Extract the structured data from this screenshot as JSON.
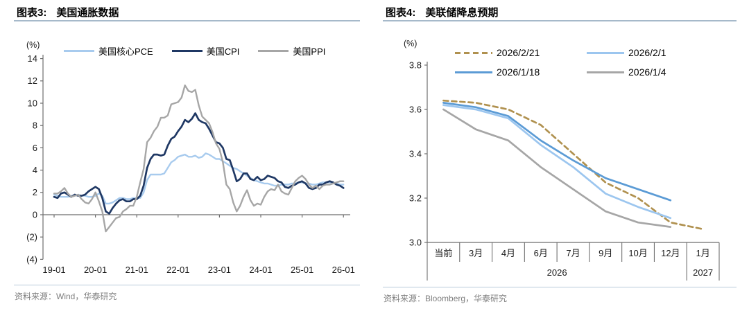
{
  "figures": [
    {
      "caption_prefix": "图表3:",
      "caption": "美国通胀数据",
      "source": "资料来源：Wind，华泰研究"
    },
    {
      "caption_prefix": "图表4:",
      "caption": "美联储降息预期",
      "source": "资料来源：Bloomberg，华泰研究"
    }
  ],
  "chart_data": [
    {
      "type": "line",
      "title": "美国通胀数据",
      "unit_label": "(%)",
      "ylim": [
        -4,
        14
      ],
      "grid": false,
      "legend_position": "top",
      "yticks": [
        {
          "v": 14,
          "t": "14"
        },
        {
          "v": 12,
          "t": "12"
        },
        {
          "v": 10,
          "t": "10"
        },
        {
          "v": 8,
          "t": "8"
        },
        {
          "v": 6,
          "t": "6"
        },
        {
          "v": 4,
          "t": "4"
        },
        {
          "v": 2,
          "t": "2"
        },
        {
          "v": 0,
          "t": "0"
        },
        {
          "v": -2,
          "t": "(2)"
        },
        {
          "v": -4,
          "t": "(4)"
        }
      ],
      "x_tick_labels": [
        "19-01",
        "20-01",
        "21-01",
        "22-01",
        "23-01",
        "24-01",
        "25-01",
        "26-01"
      ],
      "months_per_tick": 12,
      "x_start": "2019-01",
      "series": [
        {
          "name": "美国核心PCE",
          "color": "#a8cbee",
          "width": 2.4,
          "values": [
            1.8,
            1.7,
            1.6,
            1.6,
            1.6,
            1.7,
            1.7,
            1.8,
            1.7,
            1.7,
            1.6,
            1.6,
            1.7,
            1.9,
            1.7,
            1.0,
            1.0,
            1.1,
            1.3,
            1.5,
            1.5,
            1.4,
            1.4,
            1.5,
            1.5,
            1.5,
            2.0,
            3.1,
            3.6,
            3.6,
            3.6,
            3.6,
            3.7,
            4.2,
            4.7,
            4.9,
            5.2,
            5.3,
            5.4,
            5.2,
            5.2,
            5.3,
            5.1,
            5.2,
            5.5,
            5.4,
            5.2,
            5.0,
            5.0,
            4.8,
            4.6,
            4.4,
            4.2,
            4.1,
            3.9,
            3.7,
            3.5,
            3.3,
            3.1,
            3.0,
            2.9,
            2.8,
            2.8,
            2.7,
            2.6,
            2.6,
            2.7,
            2.7,
            2.7,
            2.8,
            2.8,
            2.9,
            2.9,
            2.8,
            2.8,
            2.7,
            2.7,
            2.8,
            2.9,
            2.9,
            2.9,
            2.8,
            2.8,
            2.7,
            2.7
          ]
        },
        {
          "name": "美国CPI",
          "color": "#1f3864",
          "width": 2.7,
          "values": [
            1.6,
            1.5,
            1.9,
            2.0,
            1.8,
            1.6,
            1.8,
            1.7,
            1.7,
            1.8,
            2.1,
            2.3,
            2.5,
            2.3,
            1.5,
            0.3,
            0.1,
            0.6,
            1.0,
            1.3,
            1.4,
            1.2,
            1.2,
            1.4,
            1.4,
            1.7,
            2.6,
            4.2,
            5.0,
            5.4,
            5.4,
            5.3,
            5.4,
            6.2,
            6.8,
            7.0,
            7.5,
            7.9,
            8.5,
            8.3,
            8.6,
            9.1,
            8.5,
            8.3,
            8.2,
            7.7,
            7.1,
            6.5,
            6.4,
            6.0,
            5.0,
            4.9,
            4.0,
            3.0,
            3.2,
            3.7,
            3.7,
            3.2,
            3.1,
            3.4,
            3.1,
            3.2,
            3.5,
            3.4,
            3.3,
            3.0,
            2.9,
            2.5,
            2.4,
            2.6,
            2.7,
            2.9,
            3.0,
            2.8,
            2.4,
            2.3,
            2.4,
            2.7,
            2.7,
            2.9,
            3.0,
            2.9,
            2.7,
            2.6,
            2.4
          ]
        },
        {
          "name": "美国PPI",
          "color": "#a6a6a6",
          "width": 2.4,
          "values": [
            1.9,
            1.9,
            2.1,
            2.4,
            1.9,
            1.6,
            1.7,
            1.8,
            1.4,
            1.1,
            1.0,
            1.4,
            2.0,
            1.2,
            0.3,
            -1.5,
            -1.1,
            -0.7,
            -0.3,
            -0.2,
            0.3,
            0.5,
            0.8,
            0.8,
            1.6,
            2.9,
            4.1,
            6.5,
            6.9,
            7.5,
            7.9,
            8.7,
            8.7,
            8.9,
            9.9,
            10.0,
            10.1,
            10.5,
            11.6,
            11.1,
            11.0,
            11.2,
            9.8,
            8.8,
            8.5,
            8.2,
            7.4,
            6.4,
            5.9,
            4.7,
            2.7,
            2.3,
            1.1,
            0.3,
            0.8,
            1.6,
            2.2,
            1.3,
            0.8,
            1.0,
            0.9,
            1.6,
            2.1,
            2.3,
            2.2,
            2.7,
            2.1,
            1.9,
            1.8,
            2.4,
            3.0,
            3.3,
            3.5,
            3.2,
            2.7,
            2.4,
            2.6,
            2.3,
            2.6,
            2.7,
            2.7,
            2.8,
            2.9,
            3.0,
            3.0
          ]
        }
      ]
    },
    {
      "type": "line",
      "title": "美联储降息预期",
      "unit_label": "(%)",
      "ylim": [
        3.0,
        3.8
      ],
      "grid": false,
      "legend_position": "top",
      "yticks": [
        {
          "v": 3.8,
          "t": "3.8"
        },
        {
          "v": 3.6,
          "t": "3.6"
        },
        {
          "v": 3.4,
          "t": "3.4"
        },
        {
          "v": 3.2,
          "t": "3.2"
        },
        {
          "v": 3.0,
          "t": "3.0"
        }
      ],
      "categories": [
        "当前",
        "3月",
        "4月",
        "6月",
        "7月",
        "9月",
        "10月",
        "12月",
        "1月"
      ],
      "year_groups": [
        {
          "label": "2026",
          "span": 8
        },
        {
          "label": "2027",
          "span": 1
        }
      ],
      "series": [
        {
          "name": "2026/2/21",
          "color": "#b0914f",
          "width": 2.7,
          "dash": "7 5",
          "values": [
            3.64,
            3.63,
            3.6,
            3.53,
            3.4,
            3.27,
            3.2,
            3.09,
            3.06
          ]
        },
        {
          "name": "2026/2/1",
          "color": "#9cc6ef",
          "width": 2.7,
          "values": [
            3.62,
            3.6,
            3.56,
            3.44,
            3.34,
            3.22,
            3.16,
            3.11,
            null
          ]
        },
        {
          "name": "2026/1/18",
          "color": "#5b9bd5",
          "width": 2.7,
          "values": [
            3.63,
            3.61,
            3.57,
            3.46,
            3.37,
            3.29,
            3.24,
            3.19,
            null
          ]
        },
        {
          "name": "2026/1/4",
          "color": "#a6a6a6",
          "width": 2.7,
          "values": [
            3.6,
            3.51,
            3.46,
            3.34,
            3.24,
            3.14,
            3.09,
            3.07,
            null
          ]
        }
      ]
    }
  ]
}
